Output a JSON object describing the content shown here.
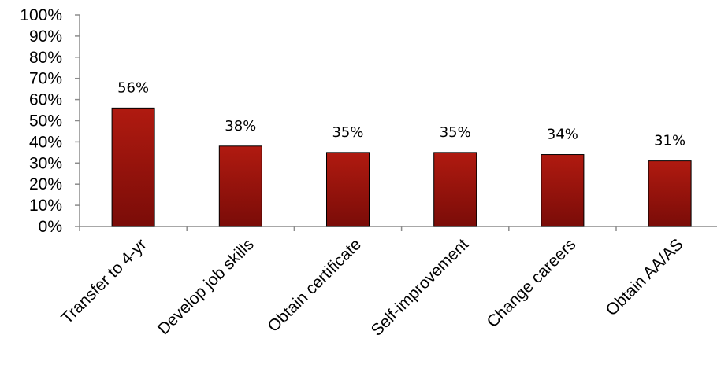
{
  "chart_data": {
    "type": "bar",
    "title": "",
    "xlabel": "",
    "ylabel": "",
    "categories": [
      "Transfer to 4-yr",
      "Develop job skills",
      "Obtain certificate",
      "Self-improvement",
      "Change careers",
      "Obtain AA/AS"
    ],
    "values": [
      56,
      38,
      35,
      35,
      34,
      31
    ],
    "data_labels": [
      "56%",
      "38%",
      "35%",
      "35%",
      "34%",
      "31%"
    ],
    "ylim": [
      0,
      100
    ],
    "yticks": [
      0,
      10,
      20,
      30,
      40,
      50,
      60,
      70,
      80,
      90,
      100
    ],
    "ytick_labels": [
      "0%",
      "10%",
      "20%",
      "30%",
      "40%",
      "50%",
      "60%",
      "70%",
      "80%",
      "90%",
      "100%"
    ],
    "grid": false,
    "legend": "none",
    "colors": {
      "bar_top": "#b01a10",
      "bar_bottom": "#7a0c08",
      "bar_edge": "#000000",
      "axis": "#8c8c8c"
    }
  }
}
